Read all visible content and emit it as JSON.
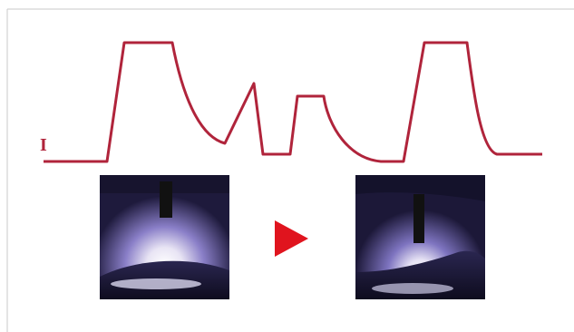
{
  "waveform": {
    "label": "I"
  }
}
